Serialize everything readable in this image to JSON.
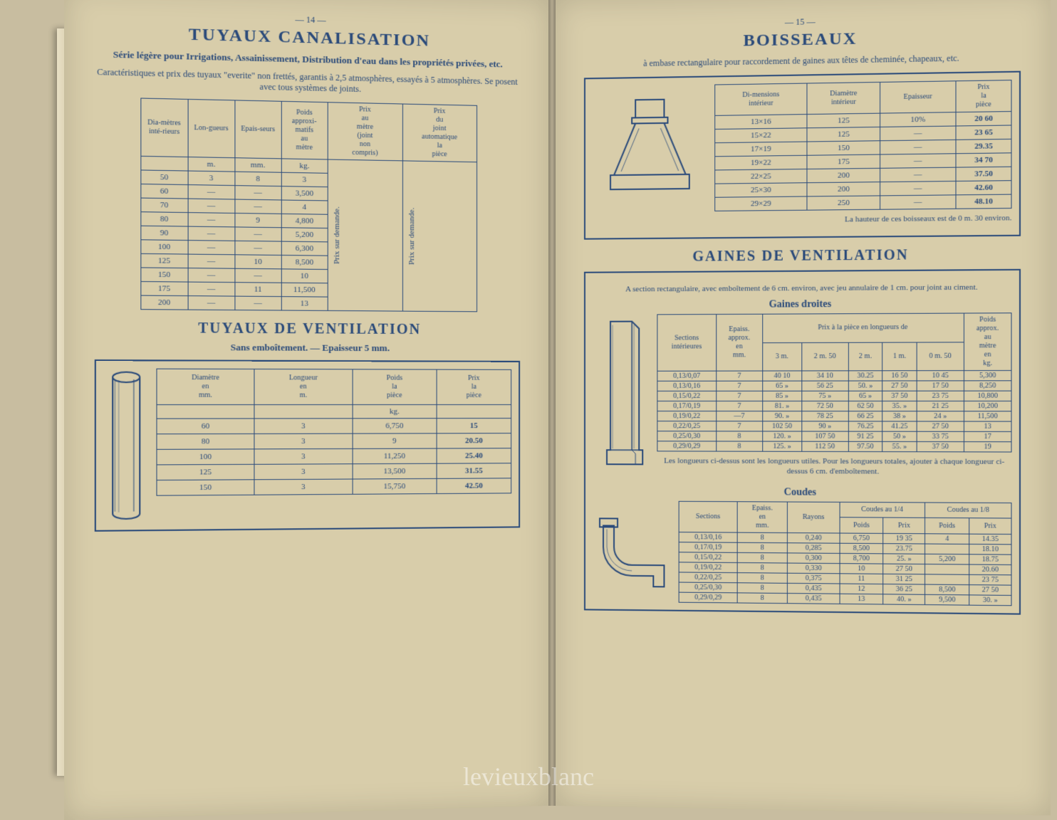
{
  "colors": {
    "ink": "#2a4a7a",
    "paper": "#d8cdaa",
    "bg": "#c8bda0"
  },
  "left": {
    "pagenum": "— 14 —",
    "h1": "TUYAUX CANALISATION",
    "subtitle": "Série légère pour Irrigations, Assainissement, Distribution d'eau dans les propriétés privées, etc.",
    "caption": "Caractéristiques et prix des tuyaux \"everite\" non frettés, garantis à 2,5 atmosphères, essayés à 5 atmosphères. Se posent avec tous systèmes de joints.",
    "canalisation_table": {
      "headers": [
        "Dia-mètres inté-rieurs",
        "Lon-gueurs",
        "Epais-seurs",
        "Poids approxi-matifs au mètre",
        "Prix au mètre (joint non compris)",
        "Prix du joint automatique la pièce"
      ],
      "unit_row": [
        "",
        "m.",
        "mm.",
        "kg.",
        "",
        ""
      ],
      "rows": [
        [
          "50",
          "3",
          "8",
          "3"
        ],
        [
          "60",
          "—",
          "—",
          "3,500"
        ],
        [
          "70",
          "—",
          "—",
          "4"
        ],
        [
          "80",
          "—",
          "9",
          "4,800"
        ],
        [
          "90",
          "—",
          "—",
          "5,200"
        ],
        [
          "100",
          "—",
          "—",
          "6,300"
        ],
        [
          "125",
          "—",
          "10",
          "8,500"
        ],
        [
          "150",
          "—",
          "—",
          "10"
        ],
        [
          "175",
          "—",
          "11",
          "11,500"
        ],
        [
          "200",
          "—",
          "—",
          "13"
        ]
      ],
      "vert_text": "Prix sur demande."
    },
    "h2": "TUYAUX DE VENTILATION",
    "subtitle2": "Sans emboîtement. — Epaisseur 5 mm.",
    "ventilation_table": {
      "headers": [
        "Diamètre en mm.",
        "Longueur en m.",
        "Poids la pièce",
        "Prix la pièce"
      ],
      "unit_row": [
        "",
        "",
        "kg.",
        ""
      ],
      "rows": [
        [
          "60",
          "3",
          "6,750",
          "15"
        ],
        [
          "80",
          "3",
          "9",
          "20.50"
        ],
        [
          "100",
          "3",
          "11,250",
          "25.40"
        ],
        [
          "125",
          "3",
          "13,500",
          "31.55"
        ],
        [
          "150",
          "3",
          "15,750",
          "42.50"
        ]
      ]
    }
  },
  "right": {
    "pagenum": "— 15 —",
    "h1": "BOISSEAUX",
    "caption": "à embase rectangulaire pour raccordement de gaines aux têtes de cheminée, chapeaux, etc.",
    "boisseaux_table": {
      "headers": [
        "Di-mensions intérieur",
        "Diamètre intérieur",
        "Epaisseur",
        "Prix la pièce"
      ],
      "rows": [
        [
          "13×16",
          "125",
          "10%",
          "20 60"
        ],
        [
          "15×22",
          "125",
          "—",
          "23 65"
        ],
        [
          "17×19",
          "150",
          "—",
          "29.35"
        ],
        [
          "19×22",
          "175",
          "—",
          "34 70"
        ],
        [
          "22×25",
          "200",
          "—",
          "37.50"
        ],
        [
          "25×30",
          "200",
          "—",
          "42.60"
        ],
        [
          "29×29",
          "250",
          "—",
          "48.10"
        ]
      ],
      "note": "La hauteur de ces boisseaux est de 0 m. 30 environ."
    },
    "h2": "GAINES DE VENTILATION",
    "caption2": "A section rectangulaire, avec emboîtement de 6 cm. environ, avec jeu annulaire de 1 cm. pour joint au ciment.",
    "sub_h1": "Gaines droites",
    "gaines_table": {
      "top_headers": [
        "Sections intérieures",
        "Epaiss. approx. en mm.",
        "Prix à la pièce en longueurs de",
        "Poids approx. au mètre en kg."
      ],
      "len_headers": [
        "3 m.",
        "2 m. 50",
        "2 m.",
        "1 m.",
        "0 m. 50"
      ],
      "rows": [
        [
          "0,13/0,07",
          "7",
          "",
          "40 10",
          "34 10",
          "30.25",
          "16 50",
          "10 45",
          "5,300"
        ],
        [
          "0,13/0,16",
          "7",
          "",
          "65 »",
          "56 25",
          "50. »",
          "27 50",
          "17 50",
          "8,250"
        ],
        [
          "0,15/0,22",
          "7",
          "",
          "85 »",
          "75 »",
          "65 »",
          "37 50",
          "23 75",
          "10,800"
        ],
        [
          "0,17/0,19",
          "7",
          "",
          "81. »",
          "72 50",
          "62 50",
          "35. »",
          "21 25",
          "10,200"
        ],
        [
          "0,19/0,22",
          "—7",
          "",
          "90. »",
          "78 25",
          "66 25",
          "38 »",
          "24 »",
          "11,500"
        ],
        [
          "0,22/0,25",
          "7",
          "",
          "102 50",
          "90 »",
          "76.25",
          "41.25",
          "27 50",
          "13"
        ],
        [
          "0,25/0,30",
          "8",
          "",
          "120. »",
          "107 50",
          "91 25",
          "50 »",
          "33 75",
          "17"
        ],
        [
          "0,29/0,29",
          "8",
          "",
          "125. »",
          "112 50",
          "97.50",
          "55. »",
          "37 50",
          "19"
        ]
      ],
      "note": "Les longueurs ci-dessus sont les longueurs utiles. Pour les longueurs totales, ajouter à chaque longueur ci-dessus 6 cm. d'emboîtement."
    },
    "sub_h2": "Coudes",
    "coudes_table": {
      "top_headers": [
        "Sections",
        "Epaiss. en mm.",
        "Rayons",
        "Coudes au 1/4",
        "Coudes au 1/8"
      ],
      "sub_headers": [
        "Poids",
        "Prix",
        "Poids",
        "Prix"
      ],
      "rows": [
        [
          "0,13/0,16",
          "8",
          "0,240",
          "6,750",
          "19 35",
          "4",
          "14.35"
        ],
        [
          "0,17/0,19",
          "8",
          "0,285",
          "8,500",
          "23.75",
          "",
          "18.10"
        ],
        [
          "0,15/0,22",
          "8",
          "0,300",
          "8,700",
          "25. »",
          "5,200",
          "18.75"
        ],
        [
          "0,19/0,22",
          "8",
          "0,330",
          "10",
          "27 50",
          "",
          "20.60"
        ],
        [
          "0,22/0,25",
          "8",
          "0,375",
          "11",
          "31 25",
          "",
          "23 75"
        ],
        [
          "0,25/0,30",
          "8",
          "0,435",
          "12",
          "36 25",
          "8,500",
          "27 50"
        ],
        [
          "0,29/0,29",
          "8",
          "0,435",
          "13",
          "40. »",
          "9,500",
          "30. »"
        ]
      ]
    }
  },
  "watermark": "levieuxblanc"
}
